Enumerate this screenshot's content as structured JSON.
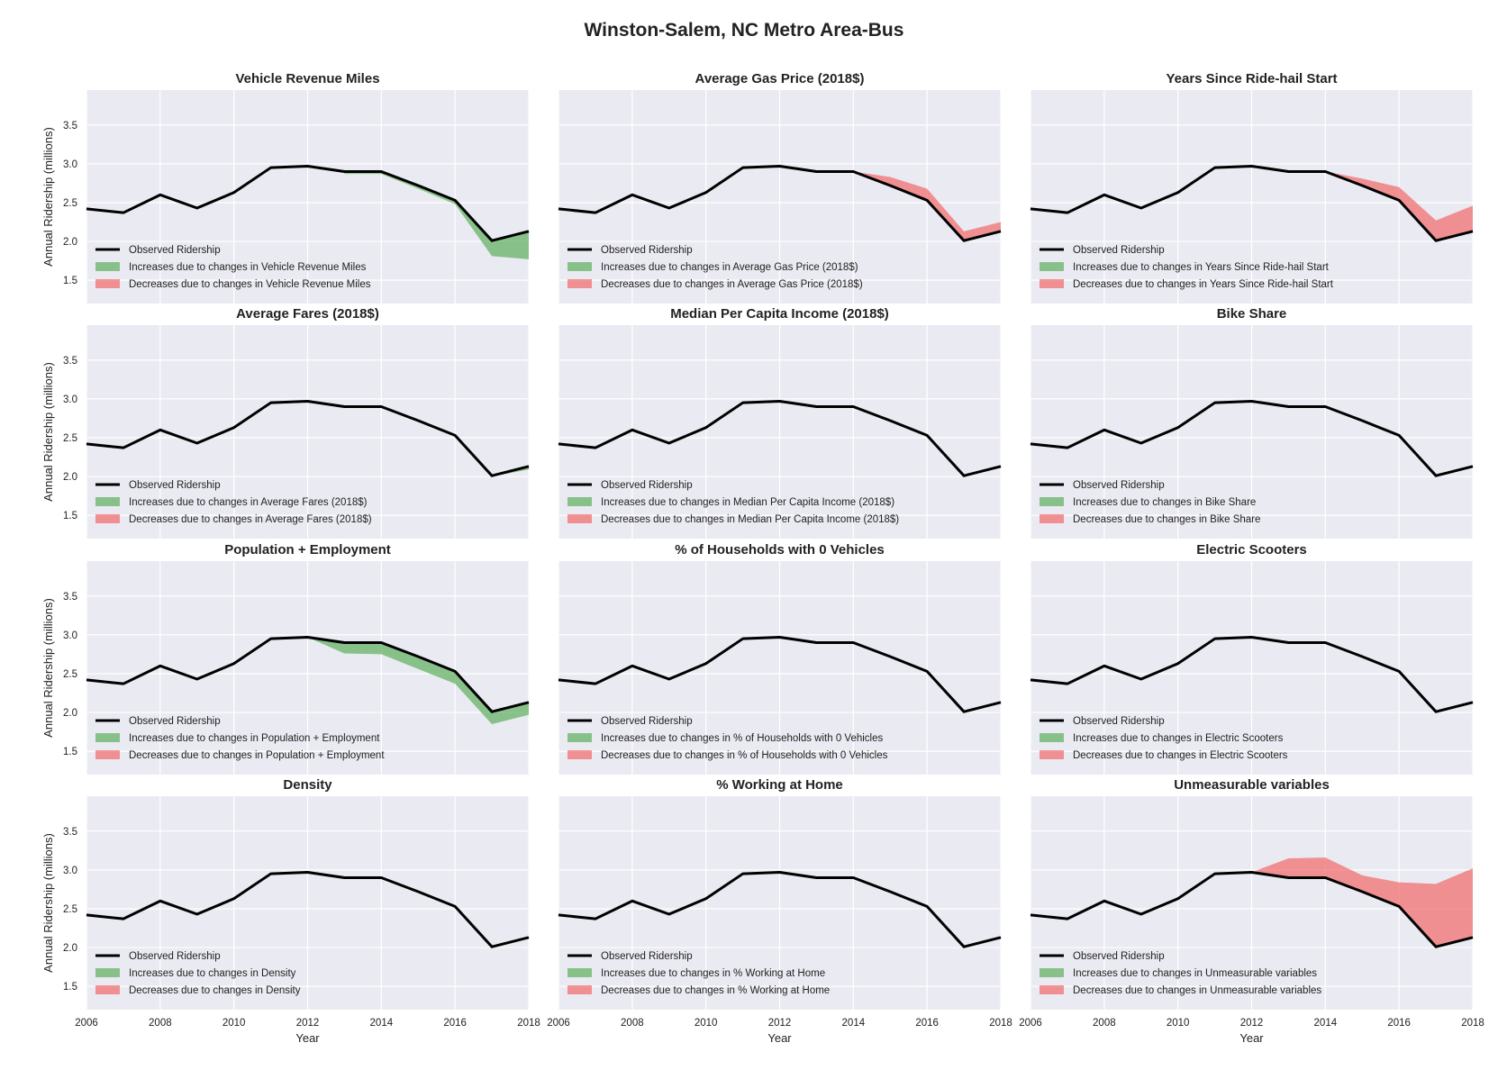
{
  "title": "Winston-Salem, NC Metro Area-Bus",
  "colors": {
    "background": "#eaeaf2",
    "grid": "#ffffff",
    "observed": "#000000",
    "increase": "#66b366",
    "decrease": "#f07070"
  },
  "chart_data": {
    "type": "area",
    "x": [
      2006,
      2007,
      2008,
      2009,
      2010,
      2011,
      2012,
      2013,
      2014,
      2015,
      2016,
      2017,
      2018
    ],
    "observed": [
      2.42,
      2.37,
      2.6,
      2.43,
      2.63,
      2.95,
      2.97,
      2.9,
      2.9,
      2.72,
      2.53,
      2.01,
      2.13
    ],
    "xlim": [
      2006,
      2018
    ],
    "ylim": [
      1.2,
      3.95
    ],
    "xticks": [
      "2006",
      "2008",
      "2010",
      "2012",
      "2014",
      "2016",
      "2018"
    ],
    "yticks": [
      "1.5",
      "2.0",
      "2.5",
      "3.0",
      "3.5"
    ],
    "xlabel": "Year",
    "ylabel": "Annual Ridership (millions)",
    "grid": true,
    "legend_location": "lower-left",
    "observed_label": "Observed Ridership",
    "panels": [
      {
        "title": "Vehicle Revenue Miles",
        "legend": [
          "Observed Ridership",
          "Increases due to changes in Vehicle Revenue Miles",
          "Decreases due to changes in Vehicle Revenue Miles"
        ],
        "increase_baseline": [
          null,
          null,
          null,
          null,
          null,
          null,
          null,
          2.87,
          2.87,
          2.68,
          2.48,
          1.81,
          1.77
        ],
        "decrease_baseline": null
      },
      {
        "title": "Average Gas Price (2018$)",
        "legend": [
          "Observed Ridership",
          "Increases due to changes in Average Gas Price (2018$)",
          "Decreases due to changes in Average Gas Price (2018$)"
        ],
        "increase_baseline": null,
        "decrease_baseline": [
          null,
          null,
          null,
          null,
          null,
          null,
          null,
          null,
          2.9,
          2.83,
          2.68,
          2.13,
          2.25
        ]
      },
      {
        "title": "Years Since Ride-hail Start",
        "legend": [
          "Observed Ridership",
          "Increases due to changes in Years Since Ride-hail Start",
          "Decreases due to changes in Years Since Ride-hail Start"
        ],
        "increase_baseline": null,
        "decrease_baseline": [
          null,
          null,
          null,
          null,
          null,
          null,
          null,
          null,
          2.9,
          2.81,
          2.7,
          2.27,
          2.46
        ]
      },
      {
        "title": "Average Fares (2018$)",
        "legend": [
          "Observed Ridership",
          "Increases due to changes in Average Fares (2018$)",
          "Decreases due to changes in Average Fares (2018$)"
        ],
        "increase_baseline": [
          null,
          null,
          null,
          null,
          null,
          null,
          null,
          null,
          null,
          null,
          2.53,
          2.0,
          2.09
        ],
        "decrease_baseline": null
      },
      {
        "title": "Median Per Capita Income (2018$)",
        "legend": [
          "Observed Ridership",
          "Increases due to changes in Median Per Capita Income (2018$)",
          "Decreases due to changes in Median Per Capita Income (2018$)"
        ],
        "increase_baseline": null,
        "decrease_baseline": null
      },
      {
        "title": "Bike Share",
        "legend": [
          "Observed Ridership",
          "Increases due to changes in Bike Share",
          "Decreases due to changes in Bike Share"
        ],
        "increase_baseline": null,
        "decrease_baseline": [
          null,
          null,
          null,
          null,
          null,
          null,
          null,
          null,
          null,
          null,
          null,
          2.03,
          2.14
        ]
      },
      {
        "title": "Population + Employment",
        "legend": [
          "Observed Ridership",
          "Increases due to changes in Population + Employment",
          "Decreases due to changes in Population + Employment"
        ],
        "increase_baseline": [
          null,
          null,
          null,
          null,
          null,
          null,
          2.97,
          2.76,
          2.75,
          2.56,
          2.37,
          1.85,
          1.97
        ],
        "decrease_baseline": null
      },
      {
        "title": "% of Households with 0 Vehicles",
        "legend": [
          "Observed Ridership",
          "Increases due to changes in % of Households with 0 Vehicles",
          "Decreases due to changes in % of Households with 0 Vehicles"
        ],
        "increase_baseline": null,
        "decrease_baseline": null
      },
      {
        "title": "Electric Scooters",
        "legend": [
          "Observed Ridership",
          "Increases due to changes in Electric Scooters",
          "Decreases due to changes in Electric Scooters"
        ],
        "increase_baseline": null,
        "decrease_baseline": null
      },
      {
        "title": "Density",
        "legend": [
          "Observed Ridership",
          "Increases due to changes in Density",
          "Decreases due to changes in Density"
        ],
        "increase_baseline": null,
        "decrease_baseline": null
      },
      {
        "title": "% Working at Home",
        "legend": [
          "Observed Ridership",
          "Increases due to changes in % Working at Home",
          "Decreases due to changes in % Working at Home"
        ],
        "increase_baseline": null,
        "decrease_baseline": null
      },
      {
        "title": "Unmeasurable variables",
        "legend": [
          "Observed Ridership",
          "Increases due to changes in Unmeasurable variables",
          "Decreases due to changes in Unmeasurable variables"
        ],
        "increase_baseline": null,
        "decrease_baseline": [
          null,
          null,
          null,
          null,
          null,
          null,
          2.97,
          3.15,
          3.16,
          2.93,
          2.84,
          2.82,
          3.02
        ]
      }
    ]
  }
}
